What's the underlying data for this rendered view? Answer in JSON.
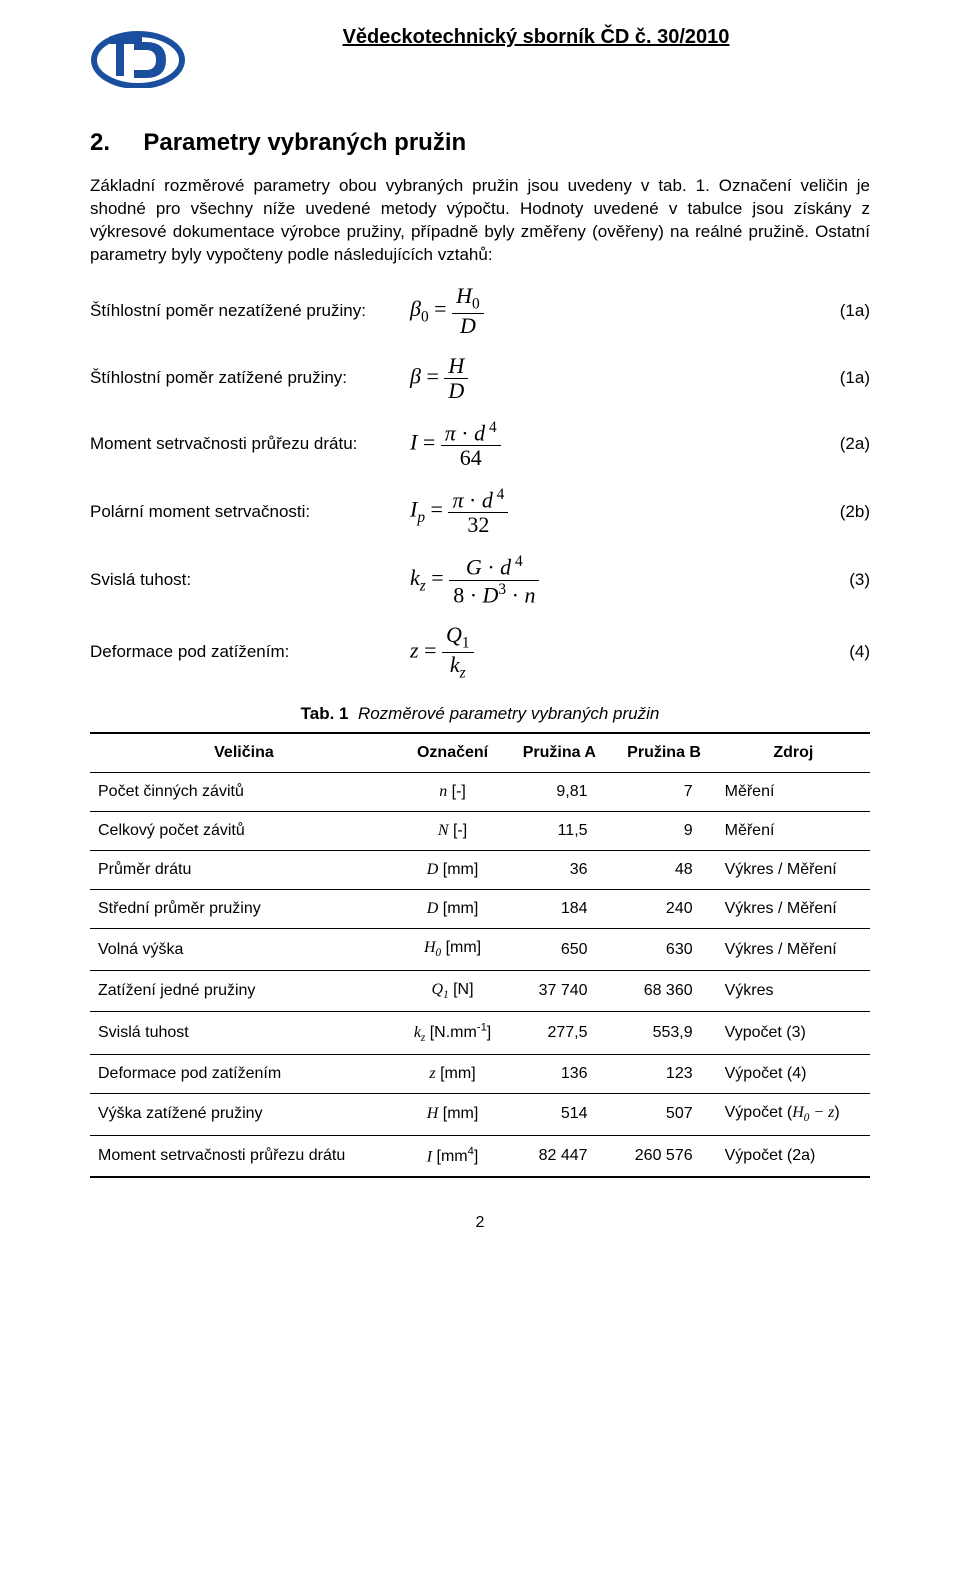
{
  "header": {
    "journal_title": "Vědeckotechnický sborník ČD č. 30/2010",
    "logo": {
      "outer_color": "#1a4fa0",
      "inner_color": "#ffffff"
    }
  },
  "section": {
    "number": "2.",
    "title": "Parametry vybraných pružin"
  },
  "intro_paragraph": "Základní rozměrové parametry obou vybraných pružin jsou uvedeny v tab. 1. Označení veličin je shodné pro všechny níže uvedené metody výpočtu. Hodnoty uvedené v tabulce jsou získány z výkresové dokumentace výrobce pružiny, případně byly změřeny (ověřeny) na reálné pružině. Ostatní parametry byly vypočteny podle následujících vztahů:",
  "equations": [
    {
      "label": "Štíhlostní poměr nezatížené pružiny:",
      "num": "(1a)"
    },
    {
      "label": "Štíhlostní poměr zatížené pružiny:",
      "num": "(1a)"
    },
    {
      "label": "Moment setrvačnosti průřezu drátu:",
      "num": "(2a)"
    },
    {
      "label": "Polární moment setrvačnosti:",
      "num": "(2b)"
    },
    {
      "label": "Svislá tuhost:",
      "num": "(3)"
    },
    {
      "label": "Deformace pod zatížením:",
      "num": "(4)"
    }
  ],
  "table": {
    "caption_bold": "Tab. 1",
    "caption_title": "Rozměrové parametry vybraných pružin",
    "columns": [
      "Veličina",
      "Označení",
      "Pružina A",
      "Pružina B",
      "Zdroj"
    ],
    "rows": [
      {
        "velicina": "Počet činných závitů",
        "oznaceni_sym": "n",
        "oznaceni_unit": "[-]",
        "a": "9,81",
        "b": "7",
        "zdroj": "Měření"
      },
      {
        "velicina": "Celkový počet závitů",
        "oznaceni_sym": "N",
        "oznaceni_unit": "[-]",
        "a": "11,5",
        "b": "9",
        "zdroj": "Měření"
      },
      {
        "velicina": "Průměr drátu",
        "oznaceni_sym": "D",
        "oznaceni_unit": "[mm]",
        "a": "36",
        "b": "48",
        "zdroj": "Výkres / Měření"
      },
      {
        "velicina": "Střední průměr pružiny",
        "oznaceni_sym": "D",
        "oznaceni_unit": "[mm]",
        "a": "184",
        "b": "240",
        "zdroj": "Výkres / Měření"
      },
      {
        "velicina": "Volná výška",
        "oznaceni_sym": "H₀",
        "oznaceni_unit": "[mm]",
        "a": "650",
        "b": "630",
        "zdroj": "Výkres / Měření"
      },
      {
        "velicina": "Zatížení jedné pružiny",
        "oznaceni_sym": "Q₁",
        "oznaceni_unit": "[N]",
        "a": "37 740",
        "b": "68 360",
        "zdroj": "Výkres"
      },
      {
        "velicina": "Svislá tuhost",
        "oznaceni_sym": "kz",
        "oznaceni_unit": "[N.mm⁻¹]",
        "a": "277,5",
        "b": "553,9",
        "zdroj": "Vypočet (3)"
      },
      {
        "velicina": "Deformace pod zatížením",
        "oznaceni_sym": "z",
        "oznaceni_unit": "[mm]",
        "a": "136",
        "b": "123",
        "zdroj": "Výpočet (4)"
      },
      {
        "velicina": "Výška zatížené pružiny",
        "oznaceni_sym": "H",
        "oznaceni_unit": "[mm]",
        "a": "514",
        "b": "507",
        "zdroj": "Výpočet (H₀ – z)"
      },
      {
        "velicina": "Moment setrvačnosti průřezu drátu",
        "oznaceni_sym": "I",
        "oznaceni_unit": "[mm⁴]",
        "a": "82 447",
        "b": "260 576",
        "zdroj": "Výpočet (2a)"
      }
    ]
  },
  "page_number": "2"
}
